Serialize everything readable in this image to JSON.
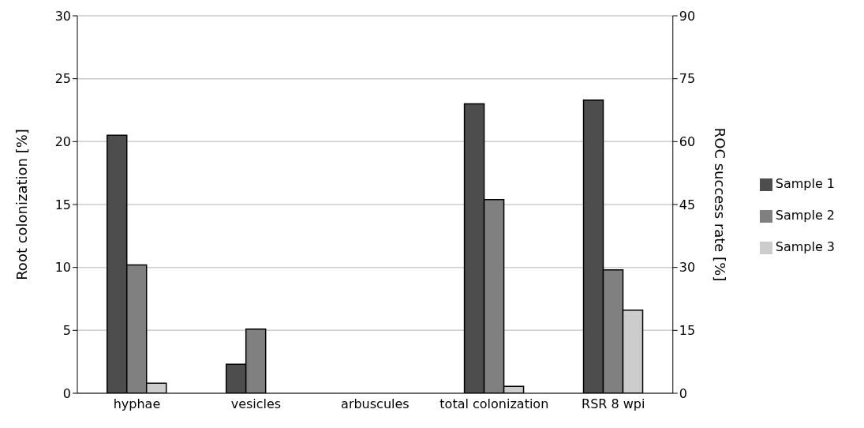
{
  "chart_data": {
    "type": "bar",
    "ylabel": "Root colonization [%]",
    "y2label": "ROC success rate [%]",
    "categories": [
      "hyphae",
      "vesicles",
      "arbuscules",
      "total colonization",
      "RSR 8 wpi"
    ],
    "series": [
      {
        "name": "Sample 1",
        "color": "#4d4d4d",
        "values": [
          20.5,
          2.3,
          0,
          23.0,
          23.3
        ]
      },
      {
        "name": "Sample 2",
        "color": "#808080",
        "values": [
          10.2,
          5.1,
          0,
          15.4,
          9.8
        ]
      },
      {
        "name": "Sample 3",
        "color": "#cccccc",
        "values": [
          0.8,
          0,
          0,
          0.55,
          6.6
        ]
      }
    ],
    "ylim": [
      0,
      30
    ],
    "yticks": [
      0,
      5,
      10,
      15,
      20,
      25,
      30
    ],
    "y2lim": [
      0,
      90
    ],
    "y2ticks": [
      0,
      15,
      30,
      45,
      60,
      75,
      90
    ],
    "grid": "y",
    "legend": "right"
  }
}
